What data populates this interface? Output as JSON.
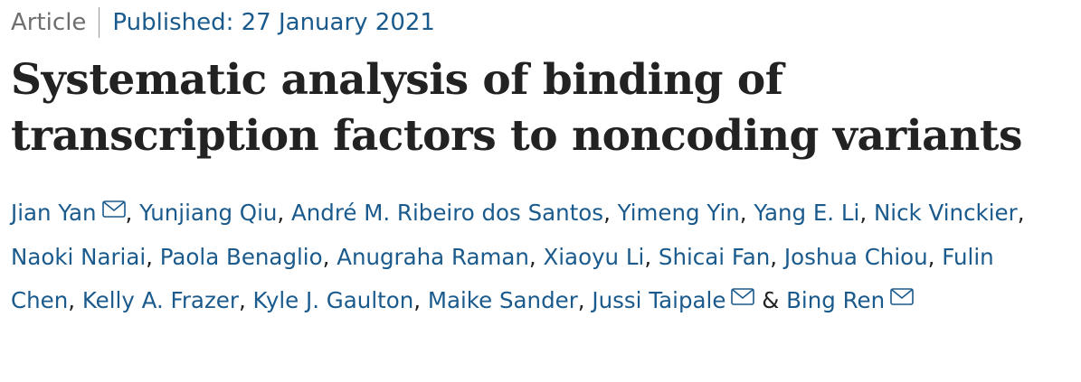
{
  "meta": {
    "article_type": "Article",
    "published_label": "Published:",
    "published_date": "27 January 2021"
  },
  "title": {
    "line1": "Systematic analysis of binding of",
    "line2": "transcription factors to noncoding variants"
  },
  "authors": [
    {
      "name": "Jian Yan",
      "email_icon": "mail-icon"
    },
    {
      "name": "Yunjiang Qiu"
    },
    {
      "name": "André M. Ribeiro dos Santos"
    },
    {
      "name": "Yimeng Yin"
    },
    {
      "name": "Yang E. Li"
    },
    {
      "name": "Nick Vinckier"
    },
    {
      "name": "Naoki Nariai"
    },
    {
      "name": "Paola Benaglio"
    },
    {
      "name": "Anugraha Raman"
    },
    {
      "name": "Xiaoyu Li"
    },
    {
      "name": "Shicai Fan"
    },
    {
      "name": "Joshua Chiou"
    },
    {
      "name": "Fulin Chen"
    },
    {
      "name": "Kelly A. Frazer"
    },
    {
      "name": "Kyle J. Gaulton"
    },
    {
      "name": "Maike Sander"
    },
    {
      "name": "Jussi Taipale",
      "email_icon": "mail-icon"
    },
    {
      "name": "Bing Ren",
      "email_icon": "mail-icon"
    }
  ],
  "separators": {
    "comma": ", ",
    "ampersand": " & "
  },
  "colors": {
    "link": "#1a5a8c",
    "muted": "#6f6f6f",
    "title": "#222222"
  }
}
